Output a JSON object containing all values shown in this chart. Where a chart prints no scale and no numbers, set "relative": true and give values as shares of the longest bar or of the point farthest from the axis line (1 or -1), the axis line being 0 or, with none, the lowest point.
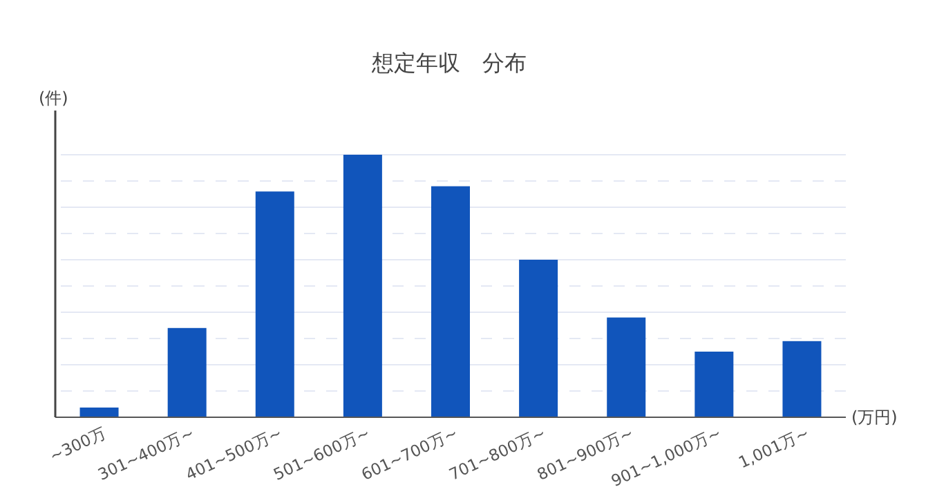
{
  "chart_data": {
    "type": "bar",
    "title": "想定年収　分布",
    "ylabel": "(件)",
    "xlabel": "(万円)",
    "relative": true,
    "grid": "y",
    "color": "#1155bb",
    "categories": [
      "~300万",
      "301~400万~",
      "401~500万~",
      "501~600万~",
      "601~700万~",
      "701~800万~",
      "801~900万~",
      "901~1,000万~",
      "1,001万~"
    ],
    "values": [
      0.037,
      0.34,
      0.86,
      1,
      0.88,
      0.6,
      0.38,
      0.25,
      0.29
    ]
  }
}
